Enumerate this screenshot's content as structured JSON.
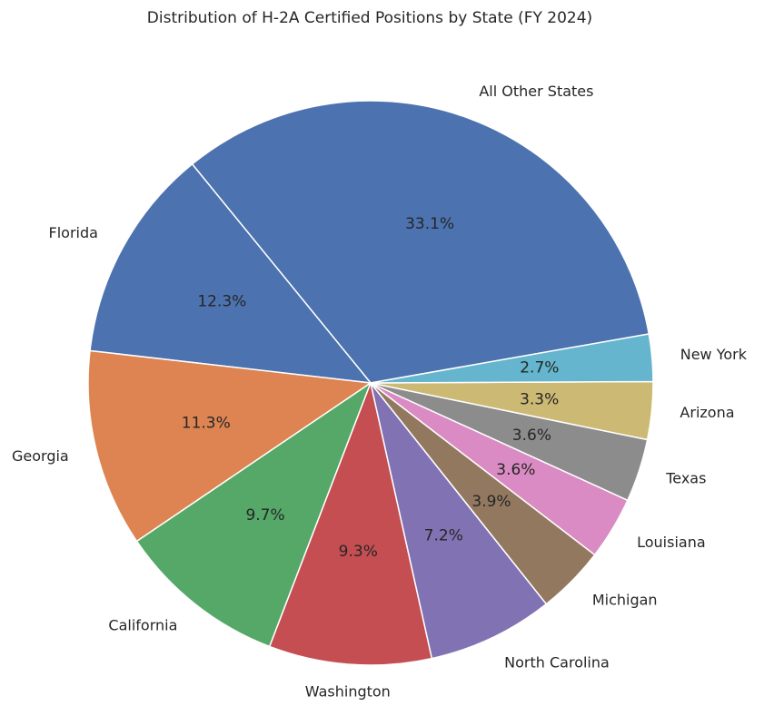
{
  "chart_data": {
    "type": "pie",
    "title": "Distribution of H-2A Certified Positions by State (FY 2024)",
    "slices": [
      {
        "label": "All Other States",
        "value": 33.1,
        "pct_label": "33.1%",
        "color": "#4c72b0"
      },
      {
        "label": "Florida",
        "value": 12.3,
        "pct_label": "12.3%",
        "color": "#4c72b0"
      },
      {
        "label": "Georgia",
        "value": 11.3,
        "pct_label": "11.3%",
        "color": "#dd8452"
      },
      {
        "label": "California",
        "value": 9.7,
        "pct_label": "9.7%",
        "color": "#55a868"
      },
      {
        "label": "Washington",
        "value": 9.3,
        "pct_label": "9.3%",
        "color": "#c44e52"
      },
      {
        "label": "North Carolina",
        "value": 7.2,
        "pct_label": "7.2%",
        "color": "#8172b3"
      },
      {
        "label": "Michigan",
        "value": 3.9,
        "pct_label": "3.9%",
        "color": "#937860"
      },
      {
        "label": "Louisiana",
        "value": 3.6,
        "pct_label": "3.6%",
        "color": "#da8bc3"
      },
      {
        "label": "Texas",
        "value": 3.6,
        "pct_label": "3.6%",
        "color": "#8c8c8c"
      },
      {
        "label": "Arizona",
        "value": 3.3,
        "pct_label": "3.3%",
        "color": "#ccb974"
      },
      {
        "label": "New York",
        "value": 2.7,
        "pct_label": "2.7%",
        "color": "#64b5cd"
      }
    ],
    "start_angle_deg": 10,
    "direction": "counterclockwise",
    "slice_edge_color": "#ffffff",
    "legend": "none"
  }
}
